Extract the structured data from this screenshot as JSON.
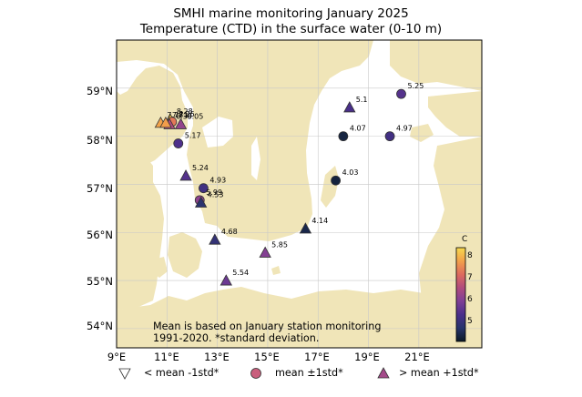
{
  "title_line1": "SMHI marine monitoring January 2025",
  "title_line2": "Temperature (CTD) in the surface water (0-10 m)",
  "note_line1": "Mean is based on January station monitoring",
  "note_line2": "1991-2020. *standard deviation.",
  "y_ticks": [
    "59°N",
    "58°N",
    "57°N",
    "56°N",
    "55°N",
    "54°N"
  ],
  "x_ticks": [
    "9°E",
    "11°E",
    "13°E",
    "15°E",
    "17°E",
    "19°E",
    "21°E"
  ],
  "legend": {
    "below": "< mean -1std*",
    "within": "mean ±1std*",
    "above": "> mean +1std*"
  },
  "colorbar": {
    "label": "C",
    "ticks": [
      "8",
      "7",
      "6",
      "5",
      "4"
    ],
    "range": [
      3.8,
      8.4
    ]
  },
  "colors": {
    "land": "#f0e5b8",
    "sea": "#ffffff",
    "grid": "#c8c8c8",
    "colormap": [
      "#0b1a26",
      "#27346b",
      "#4a2f8a",
      "#7e3f96",
      "#b04b7e",
      "#dd6a5e",
      "#f2a04a",
      "#f7d94f"
    ]
  },
  "chart_data": {
    "type": "scatter",
    "xlim": [
      9,
      23.5
    ],
    "ylim": [
      53.6,
      60.0
    ],
    "grid": true,
    "stations": [
      {
        "label": "8.28",
        "lon": 11.13,
        "lat": 58.35,
        "value": 8.28,
        "marker": "above"
      },
      {
        "label": "7.26",
        "lon": 11.2,
        "lat": 58.3,
        "value": 7.26,
        "marker": "within"
      },
      {
        "label": "7.78",
        "lon": 10.75,
        "lat": 58.28,
        "value": 7.78,
        "marker": "above"
      },
      {
        "label": "6.05",
        "lon": 11.55,
        "lat": 58.25,
        "value": 6.05,
        "marker": "above"
      },
      {
        "label": "6.39",
        "lon": 11.1,
        "lat": 58.25,
        "value": 6.39,
        "marker": "above"
      },
      {
        "label": "7.71",
        "lon": 10.95,
        "lat": 58.28,
        "value": 7.71,
        "marker": "above"
      },
      {
        "label": "5.17",
        "lon": 11.45,
        "lat": 57.85,
        "value": 5.17,
        "marker": "within"
      },
      {
        "label": "5.24",
        "lon": 11.75,
        "lat": 57.18,
        "value": 5.24,
        "marker": "above"
      },
      {
        "label": "4.93",
        "lon": 12.45,
        "lat": 56.92,
        "value": 4.93,
        "marker": "within"
      },
      {
        "label": "5.99",
        "lon": 12.3,
        "lat": 56.67,
        "value": 5.99,
        "marker": "within"
      },
      {
        "label": "4.53",
        "lon": 12.35,
        "lat": 56.62,
        "value": 4.53,
        "marker": "above"
      },
      {
        "label": "4.68",
        "lon": 12.9,
        "lat": 55.85,
        "value": 4.68,
        "marker": "above"
      },
      {
        "label": "5.54",
        "lon": 13.35,
        "lat": 55.0,
        "value": 5.54,
        "marker": "above"
      },
      {
        "label": "5.85",
        "lon": 14.9,
        "lat": 55.58,
        "value": 5.85,
        "marker": "above"
      },
      {
        "label": "4.14",
        "lon": 16.5,
        "lat": 56.08,
        "value": 4.14,
        "marker": "above"
      },
      {
        "label": "4.03",
        "lon": 17.7,
        "lat": 57.08,
        "value": 4.03,
        "marker": "within"
      },
      {
        "label": "4.07",
        "lon": 18.0,
        "lat": 58.0,
        "value": 4.07,
        "marker": "within"
      },
      {
        "label": "5.1",
        "lon": 18.25,
        "lat": 58.6,
        "value": 5.1,
        "marker": "above"
      },
      {
        "label": "4.97",
        "lon": 19.85,
        "lat": 58.0,
        "value": 4.97,
        "marker": "within"
      },
      {
        "label": "5.25",
        "lon": 20.3,
        "lat": 58.88,
        "value": 5.25,
        "marker": "within"
      }
    ]
  }
}
